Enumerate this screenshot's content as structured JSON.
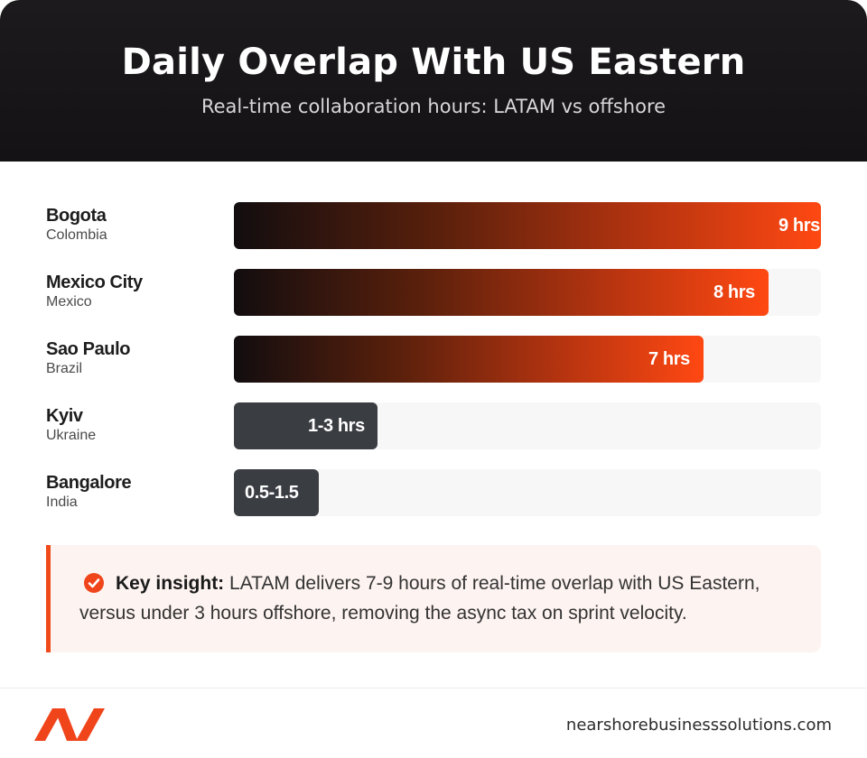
{
  "header": {
    "title": "Daily Overlap With US Eastern",
    "subtitle": "Real-time collaboration hours: LATAM vs offshore"
  },
  "chart_data": {
    "type": "bar",
    "orientation": "horizontal",
    "title": "Daily Overlap With US Eastern",
    "subtitle": "Real-time collaboration hours: LATAM vs offshore",
    "xlim": [
      0,
      9
    ],
    "grid": false,
    "legend": "none",
    "categories": [
      "Bogota",
      "Mexico City",
      "Sao Paulo",
      "Kyiv",
      "Bangalore"
    ],
    "rows": [
      {
        "city": "Bogota",
        "country": "Colombia",
        "value": 9,
        "label": "9 hrs",
        "group": "latam"
      },
      {
        "city": "Mexico City",
        "country": "Mexico",
        "value": 8.2,
        "label": "8 hrs",
        "group": "latam"
      },
      {
        "city": "Sao Paulo",
        "country": "Brazil",
        "value": 7.2,
        "label": "7 hrs",
        "group": "latam"
      },
      {
        "city": "Kyiv",
        "country": "Ukraine",
        "value": 2.2,
        "label": "1-3 hrs",
        "group": "offshore"
      },
      {
        "city": "Bangalore",
        "country": "India",
        "value": 1.3,
        "label": "0.5-1.5",
        "group": "offshore"
      }
    ],
    "colors": {
      "latam_start": "#120d0f",
      "latam_end": "#ff4812",
      "offshore": "#3a3d42",
      "track": "#f7f7f7"
    }
  },
  "insight": {
    "icon": "check-circle-icon",
    "label": "Key insight:",
    "text": " LATAM delivers 7-9 hours of real-time overlap with US Eastern, versus under 3 hours offshore, removing the async tax on sprint velocity."
  },
  "footer": {
    "logo": "nearshore-logo-icon",
    "domain": "nearshorebusinesssolutions.com"
  },
  "colors": {
    "accent": "#f0441a",
    "header_bg": "#1a181a"
  }
}
